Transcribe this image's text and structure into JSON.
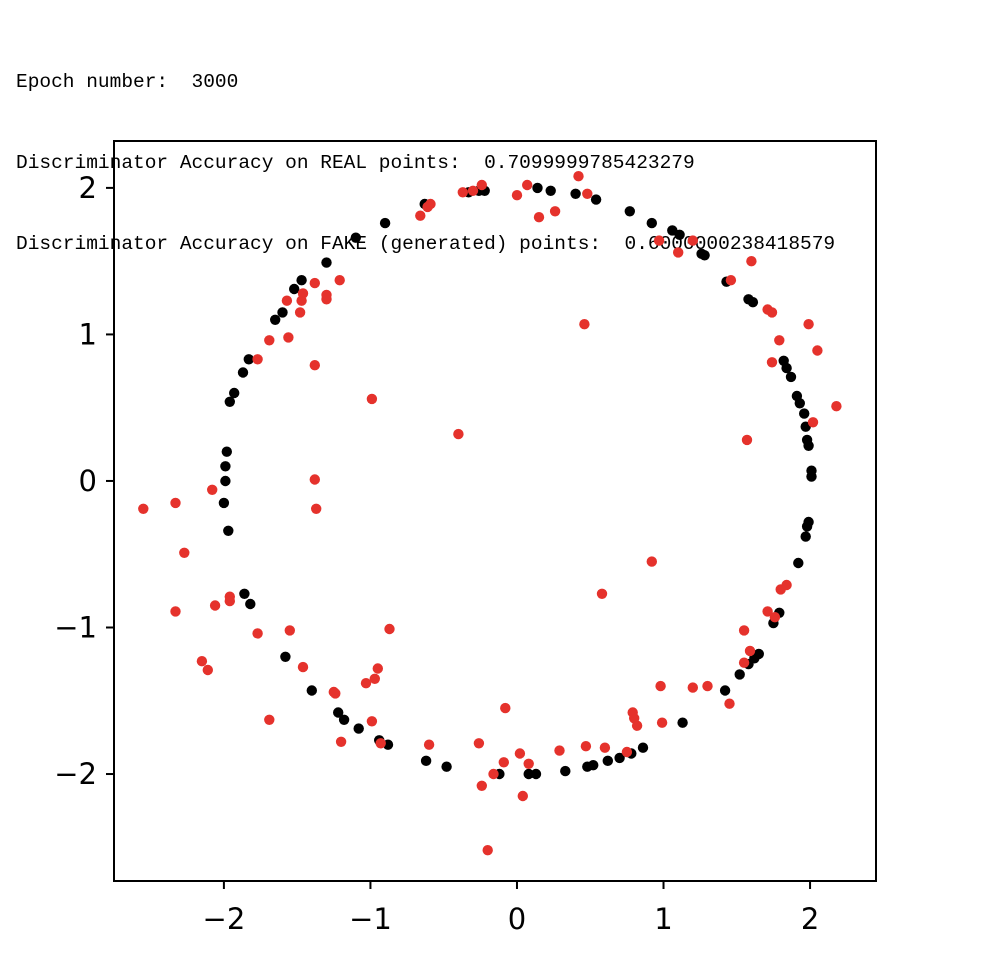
{
  "output_log": {
    "lines": [
      "Epoch number:  3000",
      "Discriminator Accuracy on REAL points:  0.7099999785423279",
      "Discriminator Accuracy on FAKE (generated) points:  0.6000000238418579"
    ]
  },
  "chart_data": {
    "type": "scatter",
    "title": "",
    "xlabel": "",
    "ylabel": "",
    "xlim": [
      -2.75,
      2.45
    ],
    "ylim": [
      -2.73,
      2.32
    ],
    "xticks": [
      -2,
      -1,
      0,
      1,
      2
    ],
    "yticks": [
      2,
      1,
      0,
      -1,
      -2
    ],
    "xtick_labels": [
      "−2",
      "−1",
      "0",
      "1",
      "2"
    ],
    "ytick_labels": [
      "2",
      "1",
      "0",
      "−1",
      "−2"
    ],
    "grid": false,
    "legend": "none",
    "series": [
      {
        "color": "#000000",
        "points": [
          [
            -0.22,
            1.98
          ],
          [
            -0.26,
            1.98
          ],
          [
            -0.33,
            1.97
          ],
          [
            -0.63,
            1.89
          ],
          [
            -0.9,
            1.76
          ],
          [
            -1.1,
            1.66
          ],
          [
            -1.3,
            1.49
          ],
          [
            -1.47,
            1.37
          ],
          [
            -1.52,
            1.31
          ],
          [
            -1.6,
            1.15
          ],
          [
            -1.65,
            1.1
          ],
          [
            -1.83,
            0.83
          ],
          [
            -1.87,
            0.74
          ],
          [
            -1.93,
            0.6
          ],
          [
            -1.96,
            0.54
          ],
          [
            -1.98,
            0.2
          ],
          [
            -1.99,
            0.1
          ],
          [
            -1.99,
            0.0
          ],
          [
            -2.0,
            -0.15
          ],
          [
            -1.97,
            -0.34
          ],
          [
            -1.86,
            -0.77
          ],
          [
            -1.82,
            -0.84
          ],
          [
            -1.58,
            -1.2
          ],
          [
            -1.4,
            -1.43
          ],
          [
            -1.22,
            -1.58
          ],
          [
            -1.18,
            -1.63
          ],
          [
            -1.08,
            -1.69
          ],
          [
            -0.94,
            -1.77
          ],
          [
            -0.88,
            -1.8
          ],
          [
            -0.62,
            -1.91
          ],
          [
            -0.48,
            -1.95
          ],
          [
            -0.12,
            -2.0
          ],
          [
            0.08,
            -2.0
          ],
          [
            0.13,
            -2.0
          ],
          [
            0.33,
            -1.98
          ],
          [
            0.48,
            -1.95
          ],
          [
            0.52,
            -1.94
          ],
          [
            0.62,
            -1.91
          ],
          [
            0.7,
            -1.89
          ],
          [
            0.78,
            -1.86
          ],
          [
            0.86,
            -1.82
          ],
          [
            1.13,
            -1.65
          ],
          [
            1.42,
            -1.43
          ],
          [
            1.52,
            -1.32
          ],
          [
            1.58,
            -1.25
          ],
          [
            1.62,
            -1.21
          ],
          [
            1.65,
            -1.18
          ],
          [
            1.75,
            -0.97
          ],
          [
            1.79,
            -0.9
          ],
          [
            1.92,
            -0.56
          ],
          [
            1.97,
            -0.38
          ],
          [
            1.98,
            -0.31
          ],
          [
            1.99,
            -0.28
          ],
          [
            2.01,
            0.03
          ],
          [
            2.01,
            0.07
          ],
          [
            1.99,
            0.24
          ],
          [
            1.98,
            0.28
          ],
          [
            1.97,
            0.37
          ],
          [
            1.96,
            0.46
          ],
          [
            1.93,
            0.53
          ],
          [
            1.91,
            0.58
          ],
          [
            1.87,
            0.71
          ],
          [
            1.84,
            0.77
          ],
          [
            1.82,
            0.82
          ],
          [
            1.61,
            1.22
          ],
          [
            1.58,
            1.24
          ],
          [
            1.43,
            1.36
          ],
          [
            1.28,
            1.54
          ],
          [
            1.26,
            1.55
          ],
          [
            1.11,
            1.68
          ],
          [
            1.06,
            1.71
          ],
          [
            0.92,
            1.76
          ],
          [
            0.77,
            1.84
          ],
          [
            0.54,
            1.92
          ],
          [
            0.4,
            1.96
          ],
          [
            0.23,
            1.98
          ],
          [
            0.14,
            2.0
          ]
        ]
      },
      {
        "color": "#e5322c",
        "points": [
          [
            -2.55,
            -0.19
          ],
          [
            -2.33,
            -0.15
          ],
          [
            -2.27,
            -0.49
          ],
          [
            -2.33,
            -0.89
          ],
          [
            -2.15,
            -1.23
          ],
          [
            -2.11,
            -1.29
          ],
          [
            -2.08,
            -0.06
          ],
          [
            -2.06,
            -0.85
          ],
          [
            -1.96,
            -0.79
          ],
          [
            -1.96,
            -0.82
          ],
          [
            -1.77,
            -1.04
          ],
          [
            -1.77,
            0.83
          ],
          [
            -1.69,
            0.96
          ],
          [
            -1.69,
            -1.63
          ],
          [
            -1.57,
            1.23
          ],
          [
            -1.56,
            0.98
          ],
          [
            -1.55,
            -1.02
          ],
          [
            -1.48,
            1.15
          ],
          [
            -1.47,
            1.23
          ],
          [
            -1.46,
            1.28
          ],
          [
            -1.46,
            -1.27
          ],
          [
            -1.38,
            1.35
          ],
          [
            -1.38,
            0.79
          ],
          [
            -1.38,
            0.01
          ],
          [
            -1.37,
            -0.19
          ],
          [
            -1.3,
            1.24
          ],
          [
            -1.3,
            1.27
          ],
          [
            -1.24,
            -1.45
          ],
          [
            -1.25,
            -1.44
          ],
          [
            -1.21,
            1.37
          ],
          [
            -1.2,
            -1.78
          ],
          [
            -1.03,
            -1.38
          ],
          [
            -0.99,
            0.56
          ],
          [
            -0.99,
            -1.64
          ],
          [
            -0.97,
            -1.35
          ],
          [
            -0.95,
            -1.28
          ],
          [
            -0.93,
            -1.79
          ],
          [
            -0.87,
            -1.01
          ],
          [
            -0.66,
            1.81
          ],
          [
            -0.61,
            1.87
          ],
          [
            -0.6,
            -1.8
          ],
          [
            -0.59,
            1.89
          ],
          [
            -0.4,
            0.32
          ],
          [
            -0.37,
            1.97
          ],
          [
            -0.3,
            1.98
          ],
          [
            -0.26,
            -1.79
          ],
          [
            -0.24,
            2.02
          ],
          [
            -0.24,
            -2.08
          ],
          [
            -0.2,
            -2.52
          ],
          [
            -0.16,
            -2.0
          ],
          [
            -0.08,
            -1.55
          ],
          [
            -0.09,
            -1.92
          ],
          [
            0.0,
            1.95
          ],
          [
            0.02,
            -1.86
          ],
          [
            0.04,
            -2.15
          ],
          [
            0.07,
            2.02
          ],
          [
            0.08,
            -1.93
          ],
          [
            0.15,
            1.8
          ],
          [
            0.26,
            1.84
          ],
          [
            0.29,
            -1.84
          ],
          [
            0.42,
            2.08
          ],
          [
            0.46,
            1.07
          ],
          [
            0.47,
            -1.81
          ],
          [
            0.48,
            1.96
          ],
          [
            0.58,
            -0.77
          ],
          [
            0.6,
            -1.82
          ],
          [
            0.75,
            -1.85
          ],
          [
            0.92,
            -0.55
          ],
          [
            0.97,
            1.64
          ],
          [
            0.98,
            -1.4
          ],
          [
            0.8,
            -1.62
          ],
          [
            0.79,
            -1.58
          ],
          [
            0.82,
            -1.67
          ],
          [
            0.99,
            -1.65
          ],
          [
            1.1,
            1.56
          ],
          [
            1.2,
            -1.41
          ],
          [
            1.2,
            1.64
          ],
          [
            1.3,
            -1.4
          ],
          [
            1.45,
            -1.52
          ],
          [
            1.46,
            1.37
          ],
          [
            1.55,
            -1.02
          ],
          [
            1.55,
            -1.24
          ],
          [
            1.57,
            0.28
          ],
          [
            1.59,
            -1.16
          ],
          [
            1.6,
            1.5
          ],
          [
            1.71,
            1.17
          ],
          [
            1.74,
            1.15
          ],
          [
            1.74,
            0.81
          ],
          [
            1.71,
            -0.89
          ],
          [
            1.76,
            -0.93
          ],
          [
            1.79,
            0.96
          ],
          [
            1.8,
            -0.74
          ],
          [
            1.84,
            -0.71
          ],
          [
            1.99,
            1.07
          ],
          [
            2.02,
            0.4
          ],
          [
            2.05,
            0.89
          ],
          [
            2.18,
            0.51
          ]
        ]
      }
    ]
  }
}
